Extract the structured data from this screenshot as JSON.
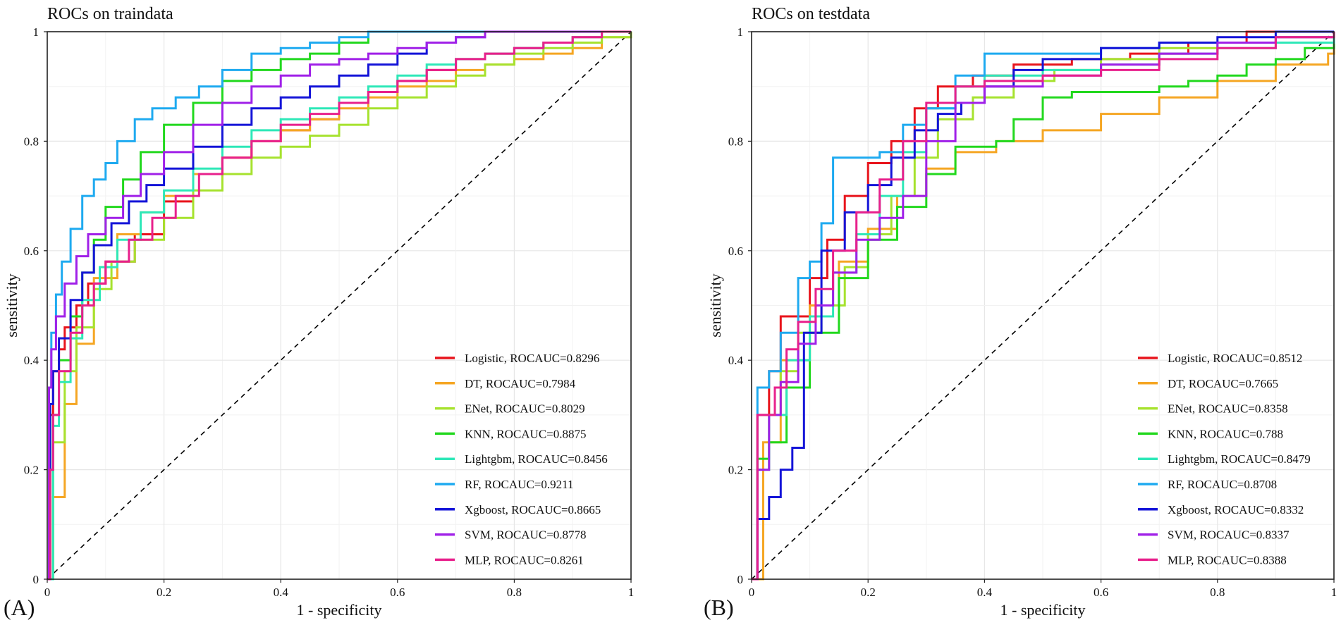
{
  "chart_data": [
    {
      "type": "line",
      "panel_label": "(A)",
      "title": "ROCs on traindata",
      "xlabel": "1 - specificity",
      "ylabel": "sensitivity",
      "xlim": [
        0,
        1
      ],
      "ylim": [
        0,
        1
      ],
      "xticks": [
        "0",
        "0.2",
        "0.4",
        "0.6",
        "0.8",
        "1"
      ],
      "yticks": [
        "0",
        "0.2",
        "0.4",
        "0.6",
        "0.8",
        "1"
      ],
      "grid": true,
      "legend_position": "bottom-right",
      "diagonal_reference": true,
      "series": [
        {
          "name": "Logistic, ROCAUC=0.8296",
          "color": "#e8141c",
          "x": [
            0,
            0.005,
            0.01,
            0.02,
            0.03,
            0.05,
            0.07,
            0.1,
            0.15,
            0.2,
            0.25,
            0.3,
            0.35,
            0.4,
            0.45,
            0.5,
            0.55,
            0.6,
            0.65,
            0.7,
            0.75,
            0.8,
            0.85,
            0.9,
            0.95,
            1
          ],
          "y": [
            0,
            0.3,
            0.38,
            0.42,
            0.46,
            0.5,
            0.54,
            0.58,
            0.63,
            0.69,
            0.74,
            0.77,
            0.8,
            0.82,
            0.84,
            0.87,
            0.89,
            0.91,
            0.93,
            0.95,
            0.96,
            0.97,
            0.98,
            0.99,
            1,
            1
          ]
        },
        {
          "name": "DT, ROCAUC=0.7984",
          "color": "#f5a623",
          "x": [
            0,
            0.01,
            0.03,
            0.05,
            0.08,
            0.12,
            0.16,
            0.2,
            0.25,
            0.3,
            0.35,
            0.4,
            0.45,
            0.5,
            0.55,
            0.6,
            0.65,
            0.7,
            0.75,
            0.8,
            0.85,
            0.9,
            0.95,
            1
          ],
          "y": [
            0,
            0.15,
            0.32,
            0.43,
            0.55,
            0.63,
            0.67,
            0.7,
            0.74,
            0.77,
            0.8,
            0.82,
            0.84,
            0.86,
            0.88,
            0.9,
            0.91,
            0.93,
            0.94,
            0.95,
            0.96,
            0.97,
            0.99,
            1
          ]
        },
        {
          "name": "ENet, ROCAUC=0.8029",
          "color": "#a6e22e",
          "x": [
            0,
            0.01,
            0.03,
            0.05,
            0.08,
            0.11,
            0.15,
            0.2,
            0.25,
            0.3,
            0.35,
            0.4,
            0.45,
            0.5,
            0.55,
            0.6,
            0.65,
            0.7,
            0.75,
            0.8,
            0.85,
            0.9,
            0.95,
            1
          ],
          "y": [
            0,
            0.25,
            0.38,
            0.46,
            0.53,
            0.58,
            0.62,
            0.66,
            0.71,
            0.74,
            0.77,
            0.79,
            0.81,
            0.83,
            0.86,
            0.88,
            0.9,
            0.92,
            0.94,
            0.96,
            0.97,
            0.98,
            0.99,
            1
          ]
        },
        {
          "name": "KNN, ROCAUC=0.8875",
          "color": "#22d81e",
          "x": [
            0,
            0.005,
            0.01,
            0.02,
            0.04,
            0.06,
            0.08,
            0.1,
            0.13,
            0.16,
            0.2,
            0.25,
            0.3,
            0.35,
            0.4,
            0.45,
            0.5,
            0.55,
            0.6,
            0.65,
            0.7,
            0.75,
            0.8,
            0.9,
            1
          ],
          "y": [
            0,
            0.2,
            0.3,
            0.4,
            0.48,
            0.56,
            0.62,
            0.68,
            0.73,
            0.78,
            0.83,
            0.87,
            0.91,
            0.93,
            0.95,
            0.96,
            0.98,
            1,
            1,
            1,
            1,
            1,
            1,
            1,
            1
          ]
        },
        {
          "name": "Lightgbm, ROCAUC=0.8456",
          "color": "#2ee8b8",
          "x": [
            0,
            0.01,
            0.02,
            0.04,
            0.06,
            0.09,
            0.12,
            0.16,
            0.2,
            0.25,
            0.3,
            0.35,
            0.4,
            0.45,
            0.5,
            0.55,
            0.6,
            0.65,
            0.7,
            0.75,
            0.8,
            0.85,
            0.9,
            0.95,
            1
          ],
          "y": [
            0,
            0.28,
            0.36,
            0.44,
            0.51,
            0.57,
            0.62,
            0.67,
            0.71,
            0.75,
            0.79,
            0.82,
            0.84,
            0.86,
            0.88,
            0.9,
            0.92,
            0.94,
            0.95,
            0.96,
            0.97,
            0.98,
            0.99,
            1,
            1
          ]
        },
        {
          "name": "RF, ROCAUC=0.9211",
          "color": "#1eaaf0",
          "x": [
            0,
            0.003,
            0.007,
            0.015,
            0.025,
            0.04,
            0.06,
            0.08,
            0.1,
            0.12,
            0.15,
            0.18,
            0.22,
            0.26,
            0.3,
            0.35,
            0.4,
            0.45,
            0.5,
            0.55,
            0.6,
            0.7,
            0.8,
            0.9,
            1
          ],
          "y": [
            0,
            0.35,
            0.45,
            0.52,
            0.58,
            0.64,
            0.7,
            0.73,
            0.76,
            0.8,
            0.84,
            0.86,
            0.88,
            0.9,
            0.93,
            0.96,
            0.97,
            0.98,
            0.99,
            1,
            1,
            1,
            1,
            1,
            1
          ]
        },
        {
          "name": "Xgboost, ROCAUC=0.8665",
          "color": "#1414d8",
          "x": [
            0,
            0.005,
            0.01,
            0.02,
            0.04,
            0.06,
            0.08,
            0.11,
            0.14,
            0.17,
            0.2,
            0.25,
            0.3,
            0.35,
            0.4,
            0.45,
            0.5,
            0.55,
            0.6,
            0.65,
            0.7,
            0.75,
            0.8,
            0.9,
            1
          ],
          "y": [
            0,
            0.32,
            0.38,
            0.44,
            0.51,
            0.56,
            0.61,
            0.65,
            0.69,
            0.72,
            0.75,
            0.79,
            0.83,
            0.86,
            0.88,
            0.9,
            0.92,
            0.94,
            0.96,
            0.98,
            0.99,
            1,
            1,
            1,
            1
          ]
        },
        {
          "name": "SVM, ROCAUC=0.8778",
          "color": "#a020e8",
          "x": [
            0,
            0.003,
            0.007,
            0.015,
            0.03,
            0.05,
            0.07,
            0.1,
            0.13,
            0.16,
            0.2,
            0.25,
            0.3,
            0.35,
            0.4,
            0.45,
            0.5,
            0.55,
            0.6,
            0.65,
            0.7,
            0.75,
            0.8,
            0.9,
            1
          ],
          "y": [
            0,
            0.35,
            0.42,
            0.48,
            0.54,
            0.59,
            0.63,
            0.66,
            0.7,
            0.74,
            0.78,
            0.83,
            0.87,
            0.9,
            0.92,
            0.94,
            0.95,
            0.96,
            0.97,
            0.98,
            0.99,
            1,
            1,
            1,
            1
          ]
        },
        {
          "name": "MLP, ROCAUC=0.8261",
          "color": "#e8208c",
          "x": [
            0,
            0.005,
            0.01,
            0.02,
            0.04,
            0.06,
            0.08,
            0.1,
            0.14,
            0.18,
            0.22,
            0.26,
            0.3,
            0.35,
            0.4,
            0.45,
            0.5,
            0.55,
            0.6,
            0.65,
            0.7,
            0.75,
            0.8,
            0.85,
            0.9,
            0.95,
            1
          ],
          "y": [
            0,
            0.2,
            0.3,
            0.38,
            0.45,
            0.5,
            0.54,
            0.58,
            0.62,
            0.66,
            0.7,
            0.74,
            0.77,
            0.8,
            0.83,
            0.85,
            0.87,
            0.89,
            0.91,
            0.93,
            0.95,
            0.96,
            0.97,
            0.98,
            0.99,
            1,
            1
          ]
        }
      ]
    },
    {
      "type": "line",
      "panel_label": "(B)",
      "title": "ROCs on testdata",
      "xlabel": "1 - specificity",
      "ylabel": "sensitivity",
      "xlim": [
        0,
        1
      ],
      "ylim": [
        0,
        1
      ],
      "xticks": [
        "0",
        "0.2",
        "0.4",
        "0.6",
        "0.8",
        "1"
      ],
      "yticks": [
        "0",
        "0.2",
        "0.4",
        "0.6",
        "0.8",
        "1"
      ],
      "grid": true,
      "legend_position": "bottom-right",
      "diagonal_reference": true,
      "series": [
        {
          "name": "Logistic, ROCAUC=0.8512",
          "color": "#e8141c",
          "x": [
            0,
            0.01,
            0.03,
            0.05,
            0.07,
            0.1,
            0.13,
            0.16,
            0.2,
            0.24,
            0.28,
            0.32,
            0.38,
            0.45,
            0.55,
            0.65,
            0.75,
            0.85,
            0.95,
            1
          ],
          "y": [
            0,
            0.3,
            0.38,
            0.48,
            0.48,
            0.55,
            0.62,
            0.7,
            0.76,
            0.8,
            0.86,
            0.9,
            0.92,
            0.94,
            0.95,
            0.96,
            0.98,
            1,
            1,
            1
          ]
        },
        {
          "name": "DT, ROCAUC=0.7665",
          "color": "#f5a623",
          "x": [
            0,
            0.02,
            0.05,
            0.1,
            0.15,
            0.2,
            0.25,
            0.3,
            0.35,
            0.42,
            0.5,
            0.6,
            0.7,
            0.8,
            0.9,
            0.99,
            1
          ],
          "y": [
            0,
            0.25,
            0.4,
            0.5,
            0.58,
            0.64,
            0.7,
            0.75,
            0.78,
            0.8,
            0.82,
            0.85,
            0.88,
            0.91,
            0.94,
            0.96,
            1
          ]
        },
        {
          "name": "ENet, ROCAUC=0.8358",
          "color": "#a6e22e",
          "x": [
            0,
            0.01,
            0.03,
            0.05,
            0.08,
            0.12,
            0.16,
            0.2,
            0.24,
            0.28,
            0.32,
            0.38,
            0.45,
            0.52,
            0.6,
            0.7,
            0.8,
            0.9,
            1
          ],
          "y": [
            0,
            0.2,
            0.3,
            0.38,
            0.45,
            0.5,
            0.57,
            0.63,
            0.7,
            0.77,
            0.84,
            0.88,
            0.91,
            0.93,
            0.95,
            0.97,
            0.98,
            0.99,
            1
          ]
        },
        {
          "name": "KNN, ROCAUC=0.788",
          "color": "#22d81e",
          "x": [
            0,
            0.01,
            0.03,
            0.06,
            0.1,
            0.15,
            0.2,
            0.25,
            0.3,
            0.35,
            0.42,
            0.45,
            0.5,
            0.55,
            0.6,
            0.65,
            0.7,
            0.75,
            0.8,
            0.85,
            0.9,
            0.95,
            1
          ],
          "y": [
            0,
            0.22,
            0.25,
            0.35,
            0.45,
            0.55,
            0.62,
            0.68,
            0.74,
            0.79,
            0.8,
            0.84,
            0.88,
            0.89,
            0.89,
            0.89,
            0.9,
            0.91,
            0.92,
            0.94,
            0.95,
            0.97,
            1
          ]
        },
        {
          "name": "Lightgbm, ROCAUC=0.8479",
          "color": "#2ee8b8",
          "x": [
            0,
            0.01,
            0.03,
            0.06,
            0.1,
            0.14,
            0.18,
            0.22,
            0.26,
            0.3,
            0.35,
            0.4,
            0.5,
            0.6,
            0.7,
            0.8,
            0.9,
            1
          ],
          "y": [
            0,
            0.2,
            0.3,
            0.4,
            0.48,
            0.56,
            0.63,
            0.7,
            0.78,
            0.86,
            0.9,
            0.92,
            0.93,
            0.94,
            0.96,
            0.97,
            0.98,
            1
          ]
        },
        {
          "name": "RF, ROCAUC=0.8708",
          "color": "#1eaaf0",
          "x": [
            0,
            0.01,
            0.03,
            0.05,
            0.08,
            0.1,
            0.12,
            0.14,
            0.18,
            0.22,
            0.26,
            0.3,
            0.35,
            0.4,
            0.45,
            0.5,
            0.6,
            0.7,
            0.8,
            0.9,
            1
          ],
          "y": [
            0,
            0.35,
            0.38,
            0.45,
            0.55,
            0.58,
            0.65,
            0.77,
            0.77,
            0.78,
            0.83,
            0.86,
            0.92,
            0.96,
            0.96,
            0.96,
            0.97,
            0.98,
            0.98,
            0.99,
            1
          ]
        },
        {
          "name": "Xgboost, ROCAUC=0.8332",
          "color": "#1414d8",
          "x": [
            0,
            0.01,
            0.03,
            0.05,
            0.07,
            0.09,
            0.12,
            0.16,
            0.2,
            0.24,
            0.28,
            0.32,
            0.36,
            0.4,
            0.45,
            0.5,
            0.6,
            0.7,
            0.8,
            0.9,
            1
          ],
          "y": [
            0,
            0.11,
            0.15,
            0.2,
            0.24,
            0.45,
            0.6,
            0.67,
            0.72,
            0.77,
            0.82,
            0.85,
            0.87,
            0.9,
            0.93,
            0.95,
            0.97,
            0.98,
            0.99,
            1,
            1
          ]
        },
        {
          "name": "SVM, ROCAUC=0.8337",
          "color": "#a020e8",
          "x": [
            0,
            0.01,
            0.03,
            0.05,
            0.08,
            0.11,
            0.14,
            0.18,
            0.22,
            0.26,
            0.3,
            0.35,
            0.4,
            0.5,
            0.6,
            0.7,
            0.8,
            0.9,
            1
          ],
          "y": [
            0,
            0.2,
            0.3,
            0.36,
            0.43,
            0.5,
            0.56,
            0.62,
            0.66,
            0.7,
            0.8,
            0.87,
            0.9,
            0.92,
            0.94,
            0.96,
            0.98,
            0.99,
            1
          ]
        },
        {
          "name": "MLP, ROCAUC=0.8388",
          "color": "#e8208c",
          "x": [
            0,
            0.01,
            0.02,
            0.04,
            0.06,
            0.08,
            0.11,
            0.14,
            0.18,
            0.22,
            0.26,
            0.3,
            0.35,
            0.4,
            0.5,
            0.6,
            0.7,
            0.8,
            0.9,
            1
          ],
          "y": [
            0,
            0.3,
            0.3,
            0.35,
            0.42,
            0.47,
            0.53,
            0.6,
            0.67,
            0.73,
            0.8,
            0.87,
            0.9,
            0.91,
            0.92,
            0.93,
            0.95,
            0.97,
            0.99,
            1
          ]
        }
      ]
    }
  ]
}
